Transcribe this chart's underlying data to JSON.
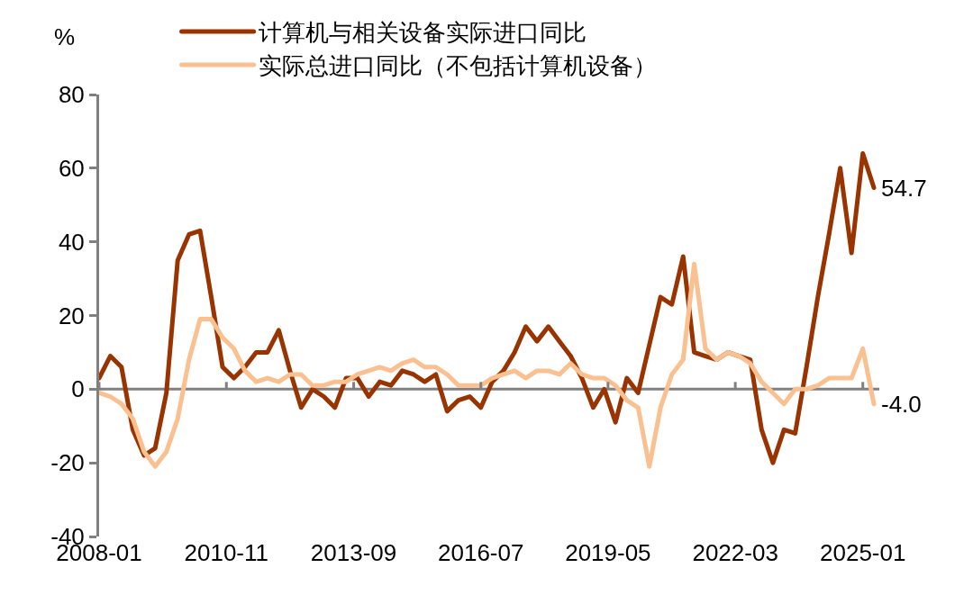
{
  "chart_data": {
    "type": "line",
    "ylabel": "%",
    "x": [
      "2008-01",
      "2008-04",
      "2008-07",
      "2008-10",
      "2009-01",
      "2009-04",
      "2009-07",
      "2009-10",
      "2010-01",
      "2010-04",
      "2010-07",
      "2010-10",
      "2011-01",
      "2011-04",
      "2011-07",
      "2011-10",
      "2012-01",
      "2012-04",
      "2012-07",
      "2012-10",
      "2013-01",
      "2013-04",
      "2013-07",
      "2013-10",
      "2014-01",
      "2014-04",
      "2014-07",
      "2014-10",
      "2015-01",
      "2015-04",
      "2015-07",
      "2015-10",
      "2016-01",
      "2016-04",
      "2016-07",
      "2016-10",
      "2017-01",
      "2017-04",
      "2017-07",
      "2017-10",
      "2018-01",
      "2018-04",
      "2018-07",
      "2018-10",
      "2019-01",
      "2019-04",
      "2019-07",
      "2019-10",
      "2020-01",
      "2020-04",
      "2020-07",
      "2020-10",
      "2021-01",
      "2021-04",
      "2021-07",
      "2021-10",
      "2022-01",
      "2022-04",
      "2022-07",
      "2022-10",
      "2023-01",
      "2023-04",
      "2023-07",
      "2023-10",
      "2024-01",
      "2024-04",
      "2024-07",
      "2024-10",
      "2025-01",
      "2025-04"
    ],
    "series": [
      {
        "name": "计算机与相关设备实际进口同比",
        "color": "#993300",
        "values": [
          3,
          9,
          6,
          -11,
          -18,
          -16,
          -1,
          35,
          42,
          43,
          25,
          6,
          3,
          6,
          10,
          10,
          16,
          5,
          -5,
          0,
          -2,
          -5,
          3,
          3,
          -2,
          2,
          1,
          5,
          4,
          2,
          4,
          -6,
          -3,
          -2,
          -5,
          2,
          5,
          10,
          17,
          13,
          17,
          13,
          9,
          3,
          -5,
          0,
          -9,
          3,
          -1,
          12,
          25,
          23,
          36,
          10,
          9,
          8,
          10,
          9,
          8,
          -11,
          -20,
          -11,
          -12,
          6,
          25,
          42,
          60,
          37,
          64,
          54.7
        ],
        "value_labels": [
          null,
          null,
          null,
          null,
          null,
          null,
          null,
          null,
          null,
          null,
          null,
          null,
          null,
          null,
          null,
          null,
          null,
          null,
          null,
          null,
          null,
          null,
          null,
          null,
          null,
          null,
          null,
          null,
          null,
          null,
          null,
          null,
          null,
          null,
          null,
          null,
          null,
          null,
          null,
          null,
          null,
          null,
          null,
          null,
          null,
          null,
          null,
          null,
          null,
          null,
          null,
          null,
          null,
          null,
          null,
          null,
          null,
          null,
          null,
          null,
          null,
          null,
          null,
          null,
          null,
          null,
          null,
          null,
          null,
          "54.7"
        ]
      },
      {
        "name": "实际总进口同比（不包括计算机设备）",
        "color": "#fac090",
        "values": [
          -1,
          -2,
          -4,
          -8,
          -17,
          -21,
          -17,
          -8,
          8,
          19,
          19,
          14,
          11,
          5,
          2,
          3,
          2,
          4,
          4,
          1,
          1,
          2,
          2,
          4,
          5,
          6,
          5,
          7,
          8,
          6,
          6,
          4,
          1,
          1,
          1,
          3,
          4,
          5,
          3,
          5,
          5,
          4,
          7,
          4,
          3,
          3,
          1,
          -3,
          -5,
          -21,
          -5,
          4,
          8,
          34,
          11,
          8,
          10,
          9,
          7,
          2,
          -1,
          -4,
          0,
          0,
          1,
          3,
          3,
          3,
          11,
          -4.0
        ],
        "value_labels": [
          null,
          null,
          null,
          null,
          null,
          null,
          null,
          null,
          null,
          null,
          null,
          null,
          null,
          null,
          null,
          null,
          null,
          null,
          null,
          null,
          null,
          null,
          null,
          null,
          null,
          null,
          null,
          null,
          null,
          null,
          null,
          null,
          null,
          null,
          null,
          null,
          null,
          null,
          null,
          null,
          null,
          null,
          null,
          null,
          null,
          null,
          null,
          null,
          null,
          null,
          null,
          null,
          null,
          null,
          null,
          null,
          null,
          null,
          null,
          null,
          null,
          null,
          null,
          null,
          null,
          null,
          null,
          null,
          null,
          "-4.0"
        ]
      }
    ],
    "xlim": [
      "2008-01-01",
      "2025-05-15"
    ],
    "xticks": [
      "2008-01",
      "2010-11",
      "2013-09",
      "2016-07",
      "2019-05",
      "2022-03",
      "2025-01"
    ],
    "ylim": [
      -40,
      80
    ],
    "yticks": [
      -40,
      -20,
      0,
      20,
      40,
      60,
      80
    ],
    "ref_lines": [
      {
        "axis": "y",
        "value": 0,
        "color": "#808080"
      }
    ],
    "grid": false,
    "legend": "top",
    "marker": "none",
    "line_style": "solid"
  }
}
